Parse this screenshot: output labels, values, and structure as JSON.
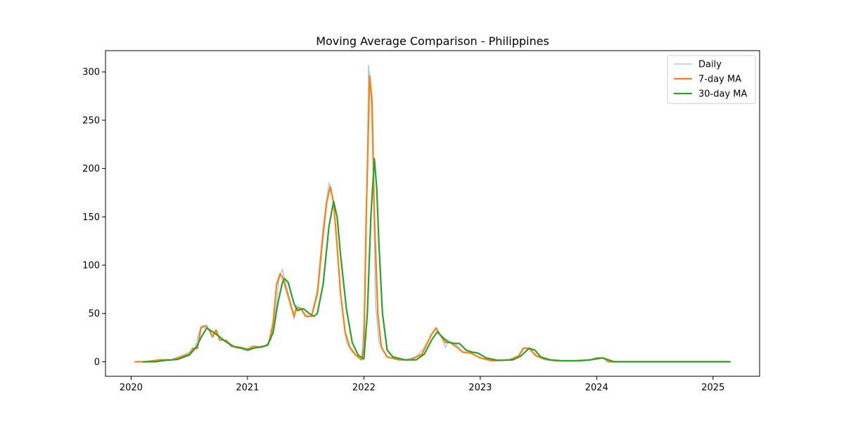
{
  "chart_data": {
    "type": "line",
    "title": "Moving Average Comparison - Philippines",
    "xlabel": "",
    "ylabel": "",
    "x_axis": {
      "type": "year",
      "range": [
        2019.78,
        2025.4
      ],
      "ticks": [
        2020,
        2021,
        2022,
        2023,
        2024,
        2025
      ],
      "tick_labels": [
        "2020",
        "2021",
        "2022",
        "2023",
        "2024",
        "2025"
      ]
    },
    "y_axis": {
      "range": [
        -15,
        322
      ],
      "ticks": [
        0,
        50,
        100,
        150,
        200,
        250,
        300
      ],
      "tick_labels": [
        "0",
        "50",
        "100",
        "150",
        "200",
        "250",
        "300"
      ]
    },
    "grid": false,
    "legend": {
      "position": "top-right",
      "entries": [
        "Daily",
        "7-day MA",
        "30-day MA"
      ]
    },
    "series": [
      {
        "name": "Daily",
        "color": "#a6cee3",
        "points": [
          [
            2020.03,
            0
          ],
          [
            2020.15,
            0
          ],
          [
            2020.25,
            2
          ],
          [
            2020.35,
            2
          ],
          [
            2020.42,
            5
          ],
          [
            2020.5,
            10
          ],
          [
            2020.55,
            15
          ],
          [
            2020.6,
            37
          ],
          [
            2020.65,
            38
          ],
          [
            2020.7,
            25
          ],
          [
            2020.73,
            33
          ],
          [
            2020.76,
            22
          ],
          [
            2020.82,
            22
          ],
          [
            2020.88,
            16
          ],
          [
            2020.95,
            15
          ],
          [
            2021.0,
            13
          ],
          [
            2021.05,
            16
          ],
          [
            2021.15,
            16
          ],
          [
            2021.2,
            22
          ],
          [
            2021.25,
            60
          ],
          [
            2021.27,
            85
          ],
          [
            2021.3,
            96
          ],
          [
            2021.33,
            80
          ],
          [
            2021.38,
            57
          ],
          [
            2021.4,
            44
          ],
          [
            2021.42,
            58
          ],
          [
            2021.46,
            56
          ],
          [
            2021.5,
            48
          ],
          [
            2021.55,
            47
          ],
          [
            2021.6,
            75
          ],
          [
            2021.65,
            140
          ],
          [
            2021.7,
            185
          ],
          [
            2021.72,
            180
          ],
          [
            2021.75,
            150
          ],
          [
            2021.8,
            70
          ],
          [
            2021.85,
            20
          ],
          [
            2021.9,
            10
          ],
          [
            2021.95,
            5
          ],
          [
            2021.98,
            2
          ],
          [
            2022.01,
            60
          ],
          [
            2022.03,
            200
          ],
          [
            2022.04,
            307
          ],
          [
            2022.06,
            280
          ],
          [
            2022.08,
            200
          ],
          [
            2022.1,
            60
          ],
          [
            2022.13,
            20
          ],
          [
            2022.2,
            5
          ],
          [
            2022.35,
            2
          ],
          [
            2022.45,
            5
          ],
          [
            2022.52,
            15
          ],
          [
            2022.58,
            28
          ],
          [
            2022.62,
            35
          ],
          [
            2022.65,
            30
          ],
          [
            2022.7,
            15
          ],
          [
            2022.73,
            22
          ],
          [
            2022.8,
            17
          ],
          [
            2022.85,
            10
          ],
          [
            2022.92,
            9
          ],
          [
            2023.0,
            4
          ],
          [
            2023.1,
            1
          ],
          [
            2023.25,
            2
          ],
          [
            2023.33,
            5
          ],
          [
            2023.38,
            15
          ],
          [
            2023.42,
            14
          ],
          [
            2023.5,
            5
          ],
          [
            2023.55,
            2
          ],
          [
            2023.65,
            1
          ],
          [
            2023.8,
            1
          ],
          [
            2023.95,
            2
          ],
          [
            2024.02,
            4
          ],
          [
            2024.06,
            4
          ],
          [
            2024.1,
            0
          ],
          [
            2025.15,
            0
          ]
        ]
      },
      {
        "name": "7-day MA",
        "color": "#ff7f0e",
        "points": [
          [
            2020.03,
            0
          ],
          [
            2020.12,
            0
          ],
          [
            2020.25,
            2
          ],
          [
            2020.35,
            2
          ],
          [
            2020.42,
            5
          ],
          [
            2020.5,
            8
          ],
          [
            2020.53,
            14
          ],
          [
            2020.57,
            14
          ],
          [
            2020.6,
            35
          ],
          [
            2020.64,
            37
          ],
          [
            2020.67,
            33
          ],
          [
            2020.7,
            26
          ],
          [
            2020.73,
            33
          ],
          [
            2020.76,
            23
          ],
          [
            2020.82,
            22
          ],
          [
            2020.86,
            16
          ],
          [
            2020.94,
            15
          ],
          [
            2021.0,
            13
          ],
          [
            2021.05,
            16
          ],
          [
            2021.12,
            15
          ],
          [
            2021.18,
            18
          ],
          [
            2021.22,
            40
          ],
          [
            2021.25,
            80
          ],
          [
            2021.28,
            91
          ],
          [
            2021.3,
            88
          ],
          [
            2021.34,
            72
          ],
          [
            2021.38,
            55
          ],
          [
            2021.4,
            47
          ],
          [
            2021.42,
            56
          ],
          [
            2021.46,
            55
          ],
          [
            2021.5,
            47
          ],
          [
            2021.55,
            47
          ],
          [
            2021.6,
            70
          ],
          [
            2021.64,
            120
          ],
          [
            2021.68,
            165
          ],
          [
            2021.71,
            181
          ],
          [
            2021.74,
            165
          ],
          [
            2021.77,
            120
          ],
          [
            2021.8,
            70
          ],
          [
            2021.84,
            30
          ],
          [
            2021.88,
            15
          ],
          [
            2021.93,
            7
          ],
          [
            2021.98,
            2
          ],
          [
            2022.0,
            15
          ],
          [
            2022.02,
            150
          ],
          [
            2022.05,
            296
          ],
          [
            2022.07,
            270
          ],
          [
            2022.09,
            150
          ],
          [
            2022.12,
            50
          ],
          [
            2022.15,
            15
          ],
          [
            2022.2,
            5
          ],
          [
            2022.3,
            2
          ],
          [
            2022.4,
            2
          ],
          [
            2022.5,
            8
          ],
          [
            2022.58,
            28
          ],
          [
            2022.62,
            35
          ],
          [
            2022.66,
            27
          ],
          [
            2022.7,
            20
          ],
          [
            2022.74,
            20
          ],
          [
            2022.8,
            15
          ],
          [
            2022.85,
            10
          ],
          [
            2022.92,
            9
          ],
          [
            2023.0,
            4
          ],
          [
            2023.1,
            1
          ],
          [
            2023.25,
            2
          ],
          [
            2023.33,
            6
          ],
          [
            2023.37,
            14
          ],
          [
            2023.42,
            14
          ],
          [
            2023.48,
            6
          ],
          [
            2023.55,
            3
          ],
          [
            2023.65,
            1
          ],
          [
            2023.8,
            1
          ],
          [
            2023.95,
            2
          ],
          [
            2024.0,
            4
          ],
          [
            2024.06,
            4
          ],
          [
            2024.1,
            0
          ],
          [
            2025.15,
            0
          ]
        ]
      },
      {
        "name": "30-day MA",
        "color": "#2ca02c",
        "points": [
          [
            2020.1,
            0
          ],
          [
            2020.2,
            0
          ],
          [
            2020.3,
            1.5
          ],
          [
            2020.4,
            2.5
          ],
          [
            2020.5,
            7
          ],
          [
            2020.56,
            15
          ],
          [
            2020.6,
            25
          ],
          [
            2020.65,
            35
          ],
          [
            2020.7,
            31
          ],
          [
            2020.75,
            27
          ],
          [
            2020.8,
            22
          ],
          [
            2020.85,
            18
          ],
          [
            2020.9,
            15
          ],
          [
            2020.95,
            14
          ],
          [
            2021.0,
            12
          ],
          [
            2021.05,
            14
          ],
          [
            2021.1,
            15
          ],
          [
            2021.17,
            17
          ],
          [
            2021.22,
            30
          ],
          [
            2021.26,
            60
          ],
          [
            2021.3,
            82
          ],
          [
            2021.32,
            86
          ],
          [
            2021.35,
            82
          ],
          [
            2021.4,
            60
          ],
          [
            2021.43,
            53
          ],
          [
            2021.48,
            55
          ],
          [
            2021.53,
            50
          ],
          [
            2021.57,
            47
          ],
          [
            2021.6,
            50
          ],
          [
            2021.65,
            80
          ],
          [
            2021.7,
            140
          ],
          [
            2021.74,
            166
          ],
          [
            2021.77,
            150
          ],
          [
            2021.8,
            110
          ],
          [
            2021.85,
            55
          ],
          [
            2021.9,
            20
          ],
          [
            2021.95,
            7
          ],
          [
            2022.0,
            3
          ],
          [
            2022.03,
            50
          ],
          [
            2022.06,
            150
          ],
          [
            2022.09,
            210
          ],
          [
            2022.11,
            180
          ],
          [
            2022.13,
            120
          ],
          [
            2022.16,
            50
          ],
          [
            2022.2,
            12
          ],
          [
            2022.25,
            5
          ],
          [
            2022.35,
            2
          ],
          [
            2022.45,
            2
          ],
          [
            2022.52,
            8
          ],
          [
            2022.58,
            22
          ],
          [
            2022.63,
            31
          ],
          [
            2022.68,
            25
          ],
          [
            2022.73,
            20
          ],
          [
            2022.78,
            19
          ],
          [
            2022.82,
            19
          ],
          [
            2022.88,
            12
          ],
          [
            2022.93,
            10
          ],
          [
            2022.98,
            9
          ],
          [
            2023.05,
            4
          ],
          [
            2023.15,
            1.5
          ],
          [
            2023.28,
            2
          ],
          [
            2023.35,
            6
          ],
          [
            2023.42,
            14
          ],
          [
            2023.47,
            12
          ],
          [
            2023.52,
            5
          ],
          [
            2023.6,
            2
          ],
          [
            2023.7,
            1
          ],
          [
            2023.85,
            1
          ],
          [
            2023.95,
            2
          ],
          [
            2024.05,
            4
          ],
          [
            2024.1,
            2
          ],
          [
            2024.15,
            0
          ],
          [
            2025.15,
            0
          ]
        ]
      }
    ]
  }
}
